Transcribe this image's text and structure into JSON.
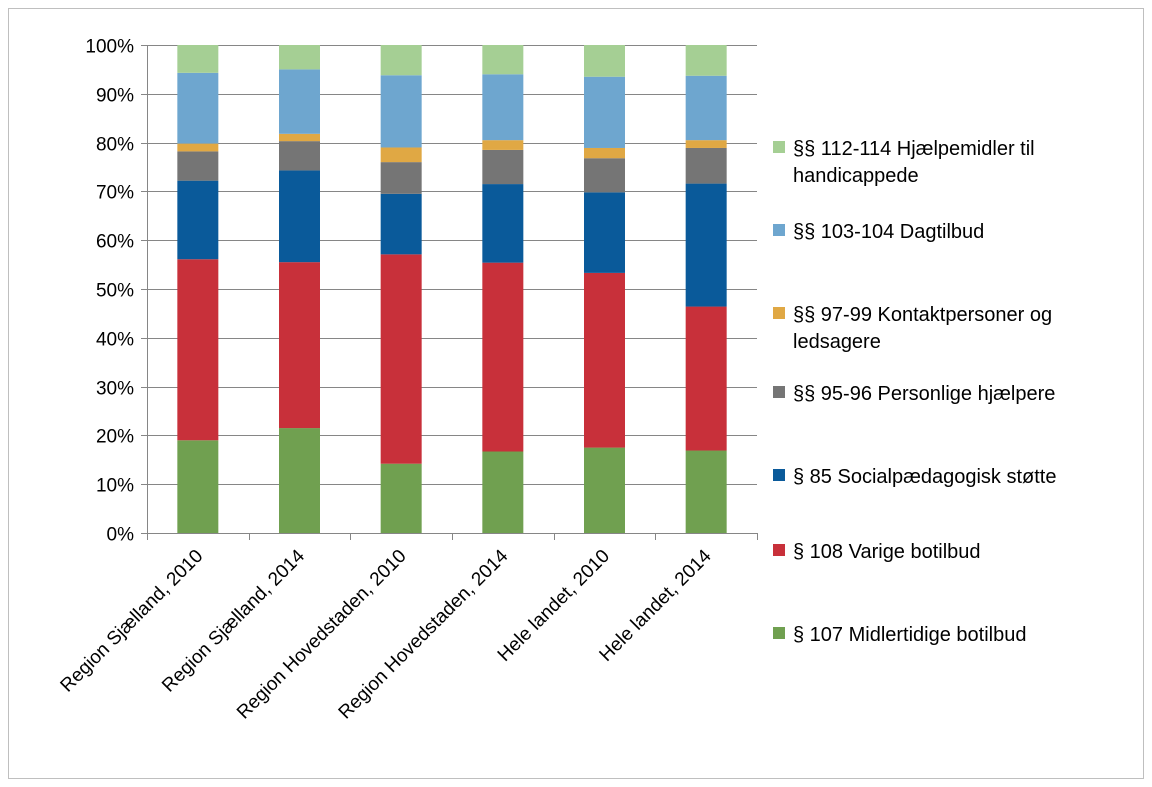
{
  "chart_data": {
    "type": "bar",
    "stacked": true,
    "percent": true,
    "title": "",
    "xlabel": "",
    "ylabel": "",
    "ylim": [
      0,
      100
    ],
    "yticks": [
      "0%",
      "10%",
      "20%",
      "30%",
      "40%",
      "50%",
      "60%",
      "70%",
      "80%",
      "90%",
      "100%"
    ],
    "grid": true,
    "legend_position": "right",
    "categories": [
      "Region Sjælland, 2010",
      "Region Sjælland, 2014",
      "Region Hovedstaden, 2010",
      "Region Hovedstaden, 2014",
      "Hele landet, 2010",
      "Hele landet, 2014"
    ],
    "series": [
      {
        "name": "§ 107 Midlertidige botilbud",
        "color": "#70a050",
        "values": [
          19.0,
          21.5,
          14.2,
          16.7,
          17.5,
          16.9
        ]
      },
      {
        "name": "§ 108 Varige botilbud",
        "color": "#c8303a",
        "values": [
          37.1,
          34.0,
          42.9,
          38.7,
          35.8,
          29.5
        ]
      },
      {
        "name": "§ 85 Socialpædagogisk støtte",
        "color": "#0a5a9a",
        "values": [
          16.1,
          18.8,
          12.4,
          16.1,
          16.5,
          25.2
        ]
      },
      {
        "name": "§§ 95-96 Personlige hjælpere",
        "color": "#757575",
        "values": [
          6.0,
          6.0,
          6.5,
          7.0,
          7.0,
          7.3
        ]
      },
      {
        "name": "§§ 97-99 Kontaktpersoner og ledsagere",
        "color": "#e0a844",
        "values": [
          1.6,
          1.5,
          3.0,
          2.0,
          2.1,
          1.6
        ]
      },
      {
        "name": "§§ 103-104 Dagtilbud",
        "color": "#6ea6cf",
        "values": [
          14.5,
          13.2,
          14.8,
          13.5,
          14.6,
          13.2
        ]
      },
      {
        "name": "§§ 112-114 Hjælpemidler til handicappede",
        "color": "#a5cf94",
        "values": [
          5.7,
          5.0,
          6.2,
          6.0,
          6.5,
          6.3
        ]
      }
    ]
  }
}
